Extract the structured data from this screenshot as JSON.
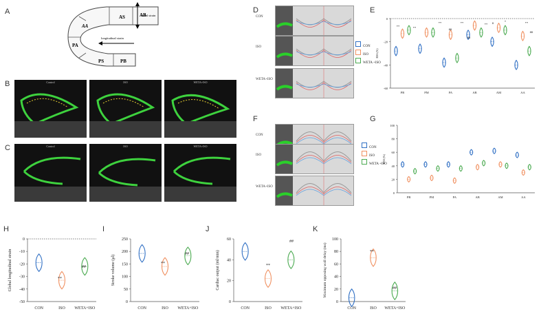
{
  "panels": {
    "A": "A",
    "B": "B",
    "C": "C",
    "D": "D",
    "E": "E",
    "F": "F",
    "G": "G",
    "H": "H",
    "I": "I",
    "J": "J",
    "K": "K"
  },
  "diagram": {
    "segments": [
      "AS",
      "AB",
      "AA",
      "PA",
      "PS",
      "PB"
    ],
    "radial_label": "radial strain",
    "longitudinal_label": "longitudinal strain",
    "segment_colors": {
      "AS": "#f0a020",
      "AB": "#1c7fd6",
      "AA": "#e030d0",
      "PA": "#1cc0e0",
      "PS": "#f0a020",
      "PB": "#20a030"
    }
  },
  "echo_captions": [
    "Control",
    "ISO",
    "WETA+ISO"
  ],
  "strip_labels": [
    "CON",
    "ISO",
    "WETA+ISO"
  ],
  "legend": {
    "con": "CON",
    "iso": "ISO",
    "weta": "WETA +ISO"
  },
  "colors": {
    "con": "#2f6fc4",
    "iso": "#f09060",
    "weta": "#4aaa50"
  },
  "chart_data": [
    {
      "id": "E",
      "type": "violin",
      "ylabel": "RSS (%)",
      "ylim": [
        -60,
        0
      ],
      "yticks": [
        0,
        -20,
        -40,
        -60
      ],
      "categories": [
        "PB",
        "PM",
        "PA",
        "AB",
        "AM",
        "AA"
      ],
      "series": [
        {
          "name": "CON",
          "values": [
            -28,
            -26,
            -38,
            -14,
            -20,
            -40
          ]
        },
        {
          "name": "ISO",
          "values": [
            -13,
            -12,
            -14,
            -6,
            -8,
            -15
          ]
        },
        {
          "name": "WETA +ISO",
          "values": [
            -10,
            -12,
            -34,
            -12,
            -10,
            -28
          ]
        }
      ],
      "annotations": [
        "**",
        "##",
        "**",
        "##",
        "**",
        "##",
        "**",
        "#",
        "*",
        "**",
        "##"
      ]
    },
    {
      "id": "G",
      "type": "violin",
      "ylabel": "RSS (%)",
      "ylim": [
        0,
        100
      ],
      "yticks": [
        0,
        20,
        40,
        60,
        80,
        100
      ],
      "categories": [
        "PB",
        "PM",
        "PA",
        "AB",
        "AM",
        "AA"
      ],
      "series": [
        {
          "name": "CON",
          "values": [
            42,
            42,
            42,
            60,
            62,
            56
          ]
        },
        {
          "name": "ISO",
          "values": [
            20,
            22,
            18,
            38,
            42,
            30
          ]
        },
        {
          "name": "WETA +ISO",
          "values": [
            32,
            36,
            36,
            44,
            40,
            38
          ]
        }
      ]
    },
    {
      "id": "H",
      "type": "violin",
      "ylabel": "Global longitudinal strain",
      "ylim": [
        -50,
        0
      ],
      "yticks": [
        0,
        -10,
        -20,
        -30,
        -40,
        -50
      ],
      "categories": [
        "CON",
        "ISO",
        "WETA+ISO"
      ],
      "values": [
        -19,
        -33,
        -22
      ],
      "annotations": [
        "**",
        "##"
      ]
    },
    {
      "id": "I",
      "type": "violin",
      "ylabel": "Stroke volume (μl)",
      "ylim": [
        0,
        250
      ],
      "yticks": [
        0,
        50,
        100,
        150,
        200,
        250
      ],
      "categories": [
        "CON",
        "ISO",
        "WETA+ISO"
      ],
      "values": [
        192,
        140,
        182
      ],
      "annotations": [
        "**",
        "##"
      ]
    },
    {
      "id": "J",
      "type": "violin",
      "ylabel": "Cardiac output (ml/min)",
      "ylim": [
        0,
        60
      ],
      "yticks": [
        0,
        20,
        40,
        60
      ],
      "categories": [
        "CON",
        "ISO",
        "WETA+ISO"
      ],
      "values": [
        48,
        22,
        40
      ],
      "annotations": [
        "**",
        "##"
      ]
    },
    {
      "id": "K",
      "type": "violin",
      "ylabel": "Maximum opposing wall delay (ms)",
      "ylim": [
        0,
        100
      ],
      "yticks": [
        0,
        20,
        40,
        60,
        80,
        100
      ],
      "categories": [
        "CON",
        "ISO",
        "WETA+ISO"
      ],
      "values": [
        6,
        70,
        17
      ],
      "annotations": [
        "**",
        "##"
      ]
    }
  ]
}
